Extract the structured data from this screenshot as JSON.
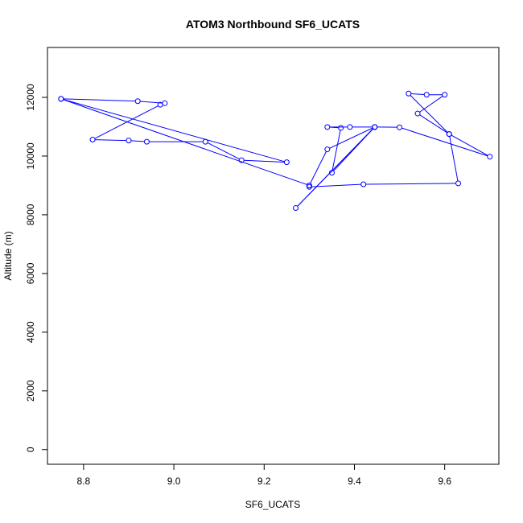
{
  "chart_data": {
    "type": "line",
    "title": "ATOM3 Northbound SF6_UCATS",
    "xlabel": "SF6_UCATS",
    "ylabel": "Altitude (m)",
    "xlim": [
      8.72,
      9.72
    ],
    "ylim": [
      -500,
      13700
    ],
    "xticks": [
      8.8,
      9.0,
      9.2,
      9.4,
      9.6
    ],
    "xtick_labels": [
      "8.8",
      "9.0",
      "9.2",
      "9.4",
      "9.6"
    ],
    "yticks": [
      0,
      2000,
      4000,
      6000,
      8000,
      10000,
      12000
    ],
    "ytick_labels": [
      "0",
      "2000",
      "4000",
      "6000",
      "8000",
      "10000",
      "12000"
    ],
    "color": "#0000ff",
    "grid": false,
    "series": [
      {
        "points": [
          [
            8.75,
            11950
          ],
          [
            8.92,
            11870
          ],
          [
            8.98,
            11800
          ],
          [
            8.97,
            11750
          ],
          [
            8.82,
            10560
          ],
          [
            8.9,
            10530
          ],
          [
            8.94,
            10490
          ],
          [
            9.07,
            10490
          ],
          [
            9.15,
            9860
          ],
          [
            9.25,
            9790
          ],
          [
            8.75,
            11950
          ],
          [
            9.3,
            9000
          ],
          [
            9.3,
            8950
          ],
          [
            9.42,
            9040
          ],
          [
            9.63,
            9070
          ],
          [
            9.61,
            10750
          ],
          [
            9.52,
            12130
          ],
          [
            9.56,
            12090
          ],
          [
            9.6,
            12090
          ],
          [
            9.54,
            11450
          ],
          [
            9.61,
            10750
          ],
          [
            9.7,
            9980
          ],
          [
            9.5,
            10980
          ],
          [
            9.445,
            10990
          ],
          [
            9.39,
            10990
          ],
          [
            9.34,
            10990
          ],
          [
            9.37,
            10960
          ],
          [
            9.35,
            9430
          ],
          [
            9.445,
            10990
          ],
          [
            9.27,
            8230
          ],
          [
            9.445,
            10990
          ],
          [
            9.34,
            10230
          ],
          [
            9.3,
            9000
          ]
        ]
      }
    ]
  }
}
